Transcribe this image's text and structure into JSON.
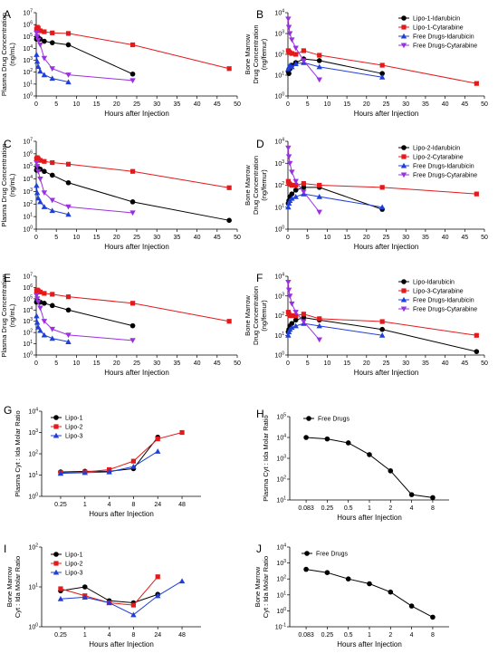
{
  "chart_data": [
    {
      "panel": "A",
      "type": "line",
      "log_y": true,
      "xlabel": "Hours after Injection",
      "ylabel": [
        "Plasma Drug Concentration",
        "(ng/mL)"
      ],
      "ylim_exp": [
        0,
        7
      ],
      "xlim": [
        0,
        50
      ],
      "xticks": [
        0,
        5,
        10,
        15,
        20,
        25,
        30,
        35,
        40,
        45,
        50
      ],
      "legend": null,
      "series": [
        {
          "name": "Lipo-1-Idarubicin",
          "color": "#000000",
          "marker": "circle",
          "x": [
            0.083,
            0.25,
            0.5,
            1,
            2,
            4,
            8,
            24
          ],
          "y": [
            60000,
            90000,
            80000,
            60000,
            40000,
            30000,
            20000,
            70
          ]
        },
        {
          "name": "Lipo-1-Cytarabine",
          "color": "#e31a1c",
          "marker": "square",
          "x": [
            0.083,
            0.25,
            0.5,
            1,
            2,
            4,
            8,
            24,
            48
          ],
          "y": [
            400000,
            600000,
            500000,
            300000,
            250000,
            200000,
            180000,
            20000,
            200
          ]
        },
        {
          "name": "Free Drugs-Idarubicin",
          "color": "#1f3fd8",
          "marker": "triangle-up",
          "x": [
            0.083,
            0.25,
            0.5,
            1,
            2,
            4,
            8
          ],
          "y": [
            3000,
            800,
            300,
            120,
            60,
            30,
            15
          ]
        },
        {
          "name": "Free Drugs-Cytarabine",
          "color": "#9b30e0",
          "marker": "triangle-down",
          "x": [
            0.083,
            0.25,
            0.5,
            1,
            2,
            4,
            8,
            24
          ],
          "y": [
            200000,
            100000,
            50000,
            20000,
            1500,
            200,
            60,
            20
          ]
        }
      ]
    },
    {
      "panel": "B",
      "type": "line",
      "log_y": true,
      "xlabel": "Hours after Injection",
      "ylabel": [
        "Bone Marrow",
        "Drug Concentration",
        "(ng/femur)"
      ],
      "ylim_exp": [
        0,
        4
      ],
      "xlim": [
        0,
        50
      ],
      "xticks": [
        0,
        5,
        10,
        15,
        20,
        25,
        30,
        35,
        40,
        45,
        50
      ],
      "legend": [
        "Lipo-1-Idarubicin",
        "Lipo-1-Cytarabine",
        "Free Drugs-Idarubicin",
        "Free Drugs-Cytarabine"
      ],
      "series": [
        {
          "name": "Lipo-1-Idarubicin",
          "color": "#000000",
          "marker": "circle",
          "x": [
            0.083,
            0.25,
            0.5,
            1,
            2,
            4,
            8,
            24
          ],
          "y": [
            15,
            12,
            20,
            30,
            40,
            60,
            50,
            12
          ]
        },
        {
          "name": "Lipo-1-Cytarabine",
          "color": "#e31a1c",
          "marker": "square",
          "x": [
            0.083,
            0.25,
            0.5,
            1,
            2,
            4,
            8,
            24,
            48
          ],
          "y": [
            150,
            130,
            120,
            110,
            100,
            150,
            90,
            30,
            4
          ]
        },
        {
          "name": "Free Drugs-Idarubicin",
          "color": "#1f3fd8",
          "marker": "triangle-up",
          "x": [
            0.083,
            0.25,
            0.5,
            1,
            2,
            4,
            8,
            24
          ],
          "y": [
            20,
            25,
            30,
            25,
            35,
            40,
            25,
            8
          ]
        },
        {
          "name": "Free Drugs-Cytarabine",
          "color": "#9b30e0",
          "marker": "triangle-down",
          "x": [
            0.083,
            0.25,
            0.5,
            1,
            2,
            4,
            8
          ],
          "y": [
            5000,
            2000,
            1000,
            500,
            200,
            50,
            6
          ]
        }
      ]
    },
    {
      "panel": "C",
      "type": "line",
      "log_y": true,
      "xlabel": "Hours after Injection",
      "ylabel": [
        "Plasma Drug Concentration",
        "(ng/mL)"
      ],
      "ylim_exp": [
        0,
        7
      ],
      "xlim": [
        0,
        50
      ],
      "xticks": [
        0,
        5,
        10,
        15,
        20,
        25,
        30,
        35,
        40,
        45,
        50
      ],
      "legend": null,
      "series": [
        {
          "name": "Lipo-2-Idarubicin",
          "color": "#000000",
          "marker": "circle",
          "x": [
            0.083,
            0.25,
            0.5,
            1,
            2,
            4,
            8,
            24,
            48
          ],
          "y": [
            50000,
            80000,
            70000,
            60000,
            40000,
            20000,
            5000,
            150,
            5
          ]
        },
        {
          "name": "Lipo-2-Cytarabine",
          "color": "#e31a1c",
          "marker": "square",
          "x": [
            0.083,
            0.25,
            0.5,
            1,
            2,
            4,
            8,
            24,
            48
          ],
          "y": [
            400000,
            500000,
            400000,
            300000,
            250000,
            200000,
            150000,
            40000,
            2000
          ]
        },
        {
          "name": "Free Drugs-Idarubicin",
          "color": "#1f3fd8",
          "marker": "triangle-up",
          "x": [
            0.083,
            0.25,
            0.5,
            1,
            2,
            4,
            8
          ],
          "y": [
            3000,
            800,
            300,
            150,
            60,
            30,
            15
          ]
        },
        {
          "name": "Free Drugs-Cytarabine",
          "color": "#9b30e0",
          "marker": "triangle-down",
          "x": [
            0.083,
            0.25,
            0.5,
            1,
            2,
            4,
            8,
            24
          ],
          "y": [
            200000,
            100000,
            40000,
            10000,
            800,
            200,
            60,
            20
          ]
        }
      ]
    },
    {
      "panel": "D",
      "type": "line",
      "log_y": true,
      "xlabel": "Hours after Injection",
      "ylabel": [
        "Bone Marrow",
        "Drug Concentration",
        "(ng/femur)"
      ],
      "ylim_exp": [
        0,
        4
      ],
      "xlim": [
        0,
        50
      ],
      "xticks": [
        0,
        5,
        10,
        15,
        20,
        25,
        30,
        35,
        40,
        45,
        50
      ],
      "legend": [
        "Lipo-2-Idarubicin",
        "Lipo-2-Cytarabine",
        "Free Drugs-Idarubicin",
        "Free Drugs-Cytarabine"
      ],
      "series": [
        {
          "name": "Lipo-2-Idarubicin",
          "color": "#000000",
          "marker": "circle",
          "x": [
            0.083,
            0.25,
            0.5,
            1,
            2,
            4,
            8,
            24
          ],
          "y": [
            15,
            20,
            30,
            40,
            60,
            80,
            80,
            8
          ]
        },
        {
          "name": "Lipo-2-Cytarabine",
          "color": "#e31a1c",
          "marker": "square",
          "x": [
            0.083,
            0.25,
            0.5,
            1,
            2,
            4,
            8,
            24,
            48
          ],
          "y": [
            150,
            120,
            110,
            100,
            100,
            120,
            100,
            80,
            40
          ]
        },
        {
          "name": "Free Drugs-Idarubicin",
          "color": "#1f3fd8",
          "marker": "triangle-up",
          "x": [
            0.083,
            0.25,
            0.5,
            1,
            2,
            4,
            8,
            24
          ],
          "y": [
            10,
            15,
            20,
            25,
            30,
            40,
            30,
            10
          ]
        },
        {
          "name": "Free Drugs-Cytarabine",
          "color": "#9b30e0",
          "marker": "triangle-down",
          "x": [
            0.083,
            0.25,
            0.5,
            1,
            2,
            4,
            8
          ],
          "y": [
            5000,
            2000,
            1000,
            400,
            150,
            50,
            6
          ]
        }
      ]
    },
    {
      "panel": "E",
      "type": "line",
      "log_y": true,
      "xlabel": "Hours after Injection",
      "ylabel": [
        "Plasma Drug Concentration",
        "(ng/mL)"
      ],
      "ylim_exp": [
        0,
        7
      ],
      "xlim": [
        0,
        50
      ],
      "xticks": [
        0,
        5,
        10,
        15,
        20,
        25,
        30,
        35,
        40,
        45,
        50
      ],
      "legend": null,
      "series": [
        {
          "name": "Lipo-3-Idarubicin",
          "color": "#000000",
          "marker": "circle",
          "x": [
            0.083,
            0.25,
            0.5,
            1,
            2,
            4,
            8,
            24
          ],
          "y": [
            50000,
            70000,
            60000,
            50000,
            40000,
            25000,
            10000,
            400
          ]
        },
        {
          "name": "Lipo-3-Cytarabine",
          "color": "#e31a1c",
          "marker": "square",
          "x": [
            0.083,
            0.25,
            0.5,
            1,
            2,
            4,
            8,
            24,
            48
          ],
          "y": [
            500000,
            600000,
            500000,
            400000,
            300000,
            250000,
            150000,
            40000,
            1000
          ]
        },
        {
          "name": "Free Drugs-Idarubicin",
          "color": "#1f3fd8",
          "marker": "triangle-up",
          "x": [
            0.083,
            0.25,
            0.5,
            1,
            2,
            4,
            8
          ],
          "y": [
            3000,
            800,
            300,
            150,
            60,
            30,
            15
          ]
        },
        {
          "name": "Free Drugs-Cytarabine",
          "color": "#9b30e0",
          "marker": "triangle-down",
          "x": [
            0.083,
            0.25,
            0.5,
            1,
            2,
            4,
            8,
            24
          ],
          "y": [
            200000,
            100000,
            50000,
            15000,
            1000,
            200,
            60,
            20
          ]
        }
      ]
    },
    {
      "panel": "F",
      "type": "line",
      "log_y": true,
      "xlabel": "Hours after Injection",
      "ylabel": [
        "Bone Marrow",
        "Drug Concentration",
        "(ng/femur)"
      ],
      "ylim_exp": [
        0,
        4
      ],
      "xlim": [
        0,
        50
      ],
      "xticks": [
        0,
        5,
        10,
        15,
        20,
        25,
        30,
        35,
        40,
        45,
        50
      ],
      "legend": [
        "Lipo-Idarubicin",
        "Lipo-3-Cytarabine",
        "Free Drugs-Idarubicin",
        "Free Drugs-Cytarabine"
      ],
      "series": [
        {
          "name": "Lipo-Idarubicin",
          "color": "#000000",
          "marker": "circle",
          "x": [
            0.083,
            0.25,
            0.5,
            1,
            2,
            4,
            8,
            24,
            48
          ],
          "y": [
            15,
            20,
            30,
            40,
            60,
            80,
            60,
            20,
            1.5
          ]
        },
        {
          "name": "Lipo-3-Cytarabine",
          "color": "#e31a1c",
          "marker": "square",
          "x": [
            0.083,
            0.25,
            0.5,
            1,
            2,
            4,
            8,
            24,
            48
          ],
          "y": [
            150,
            120,
            100,
            100,
            100,
            120,
            70,
            50,
            10
          ]
        },
        {
          "name": "Free Drugs-Idarubicin",
          "color": "#1f3fd8",
          "marker": "triangle-up",
          "x": [
            0.083,
            0.25,
            0.5,
            1,
            2,
            4,
            8,
            24
          ],
          "y": [
            10,
            15,
            20,
            25,
            30,
            40,
            30,
            10
          ]
        },
        {
          "name": "Free Drugs-Cytarabine",
          "color": "#9b30e0",
          "marker": "triangle-down",
          "x": [
            0.083,
            0.25,
            0.5,
            1,
            2,
            4,
            8
          ],
          "y": [
            5000,
            2000,
            1000,
            400,
            150,
            50,
            6
          ]
        }
      ]
    },
    {
      "panel": "G",
      "type": "line",
      "log_y": true,
      "xlabel": "Hours after Injection",
      "ylabel": [
        "Plasma Cyt : Ida Molar Ratio"
      ],
      "ylim_exp": [
        0,
        4
      ],
      "categories": [
        "0.25",
        "1",
        "4",
        "8",
        "24",
        "48"
      ],
      "legend": [
        "Lipo-1",
        "Lipo-2",
        "Lipo-3"
      ],
      "series": [
        {
          "name": "Lipo-1",
          "color": "#000000",
          "marker": "circle",
          "values": [
            14,
            15,
            15,
            20,
            600,
            null
          ]
        },
        {
          "name": "Lipo-2",
          "color": "#e31a1c",
          "marker": "square",
          "values": [
            13,
            14,
            18,
            45,
            500,
            1000
          ]
        },
        {
          "name": "Lipo-3",
          "color": "#1f3fd8",
          "marker": "triangle-up",
          "values": [
            12,
            13,
            14,
            25,
            130,
            null
          ]
        }
      ]
    },
    {
      "panel": "H",
      "type": "line",
      "log_y": true,
      "xlabel": "Hours after Injection",
      "ylabel": [
        "Plasma Cyt : Ida Molar Ratio"
      ],
      "ylim_exp": [
        1,
        5
      ],
      "categories": [
        "0.083",
        "0.25",
        "0.5",
        "1",
        "2",
        "4",
        "8"
      ],
      "legend": [
        "Free Drugs"
      ],
      "series": [
        {
          "name": "Free Drugs",
          "color": "#000000",
          "marker": "circle",
          "values": [
            10000,
            8500,
            5500,
            1500,
            250,
            18,
            13
          ]
        }
      ]
    },
    {
      "panel": "I",
      "type": "line",
      "log_y": true,
      "xlabel": "Hours after Injection",
      "ylabel": [
        "Bone Marrow",
        "Cyt : Ida Molar Ratio"
      ],
      "ylim_exp": [
        0,
        2
      ],
      "categories": [
        "0.25",
        "1",
        "4",
        "8",
        "24",
        "48"
      ],
      "legend": [
        "Lipo-1",
        "Lipo-2",
        "Lipo-3"
      ],
      "series": [
        {
          "name": "Lipo-1",
          "color": "#000000",
          "marker": "circle",
          "values": [
            8,
            10,
            4.5,
            4,
            6.5,
            null
          ]
        },
        {
          "name": "Lipo-2",
          "color": "#e31a1c",
          "marker": "square",
          "values": [
            9,
            6,
            4,
            3.5,
            18,
            null
          ]
        },
        {
          "name": "Lipo-3",
          "color": "#1f3fd8",
          "marker": "triangle-up",
          "values": [
            5,
            5.5,
            4,
            2,
            6,
            14
          ]
        }
      ]
    },
    {
      "panel": "J",
      "type": "line",
      "log_y": true,
      "xlabel": "Hours after Injection",
      "ylabel": [
        "Bone Marrow",
        "Cyt : Ida Molar Ratio"
      ],
      "ylim_exp": [
        -1,
        4
      ],
      "categories": [
        "0.083",
        "0.25",
        "0.5",
        "1",
        "2",
        "4",
        "8"
      ],
      "legend": [
        "Free Drugs"
      ],
      "series": [
        {
          "name": "Free Drugs",
          "color": "#000000",
          "marker": "circle",
          "values": [
            400,
            250,
            100,
            50,
            15,
            2,
            0.4
          ]
        }
      ]
    }
  ]
}
